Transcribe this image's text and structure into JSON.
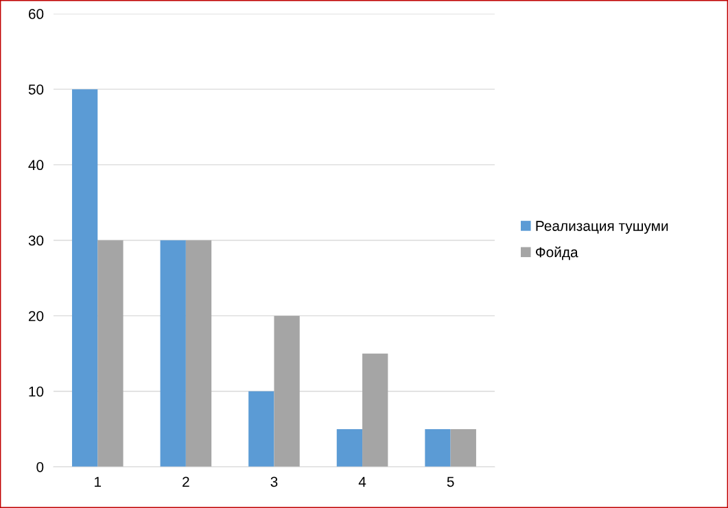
{
  "chart_data": {
    "type": "bar",
    "categories": [
      "1",
      "2",
      "3",
      "4",
      "5"
    ],
    "series": [
      {
        "name": "Реализация тушуми",
        "color": "#5b9bd5",
        "values": [
          50,
          30,
          10,
          5,
          5
        ]
      },
      {
        "name": "Фойда",
        "color": "#a5a5a5",
        "values": [
          30,
          30,
          20,
          15,
          5
        ]
      }
    ],
    "ylim": [
      0,
      60
    ],
    "yticks": [
      0,
      10,
      20,
      30,
      40,
      50,
      60
    ],
    "grid": "y",
    "legend": "right"
  }
}
